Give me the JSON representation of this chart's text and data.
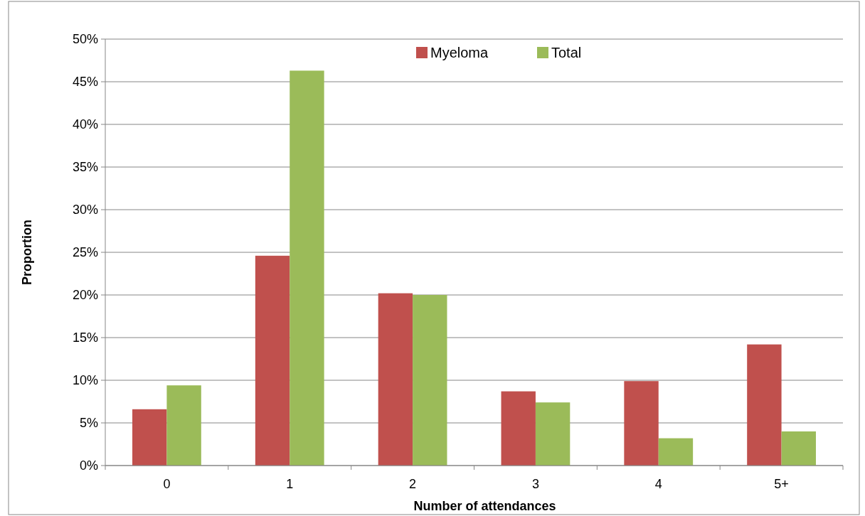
{
  "chart_data": {
    "type": "bar",
    "xlabel": "Number of attendances",
    "ylabel": "Proportion",
    "categories": [
      "0",
      "1",
      "2",
      "3",
      "4",
      "5+"
    ],
    "series": [
      {
        "name": "Myeloma",
        "color": "#c0504d",
        "values": [
          6.6,
          24.6,
          20.2,
          8.7,
          9.9,
          14.2
        ]
      },
      {
        "name": "Total",
        "color": "#9bbb59",
        "values": [
          9.4,
          46.3,
          20.0,
          7.4,
          3.2,
          4.0
        ]
      }
    ],
    "ylim": [
      0,
      50
    ],
    "yticks": [
      {
        "value": 0,
        "label": "0%"
      },
      {
        "value": 5,
        "label": "5%"
      },
      {
        "value": 10,
        "label": "10%"
      },
      {
        "value": 15,
        "label": "15%"
      },
      {
        "value": 20,
        "label": "20%"
      },
      {
        "value": 25,
        "label": "25%"
      },
      {
        "value": 30,
        "label": "30%"
      },
      {
        "value": 35,
        "label": "35%"
      },
      {
        "value": 40,
        "label": "40%"
      },
      {
        "value": 45,
        "label": "45%"
      },
      {
        "value": 50,
        "label": "50%"
      }
    ],
    "grid": "y",
    "legend": "top"
  }
}
